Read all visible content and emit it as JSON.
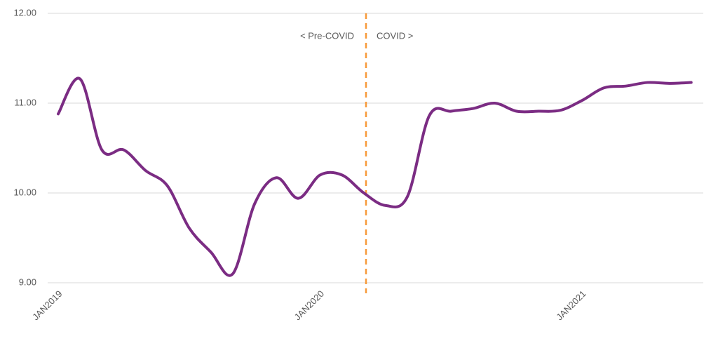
{
  "chart_data": {
    "type": "line",
    "categories": [
      "JAN2019",
      null,
      null,
      null,
      null,
      null,
      null,
      null,
      null,
      null,
      null,
      null,
      "JAN2020",
      null,
      null,
      null,
      null,
      null,
      null,
      null,
      null,
      null,
      null,
      null,
      "JAN2021",
      null,
      null,
      null,
      null,
      null
    ],
    "values": [
      10.88,
      11.27,
      10.48,
      10.48,
      10.25,
      10.08,
      9.61,
      9.34,
      9.1,
      9.88,
      10.17,
      9.94,
      10.2,
      10.2,
      10.0,
      9.86,
      9.96,
      10.86,
      10.91,
      10.94,
      11.0,
      10.91,
      10.91,
      10.92,
      11.03,
      11.17,
      11.19,
      11.23,
      11.22,
      11.23
    ],
    "color": "#7b2c83",
    "ylim": [
      9,
      12
    ],
    "yticks": [
      {
        "value": 9,
        "label": "9.00"
      },
      {
        "value": 10,
        "label": "10.00"
      },
      {
        "value": 11,
        "label": "11.00"
      },
      {
        "value": 12,
        "label": "12.00"
      }
    ],
    "grid": true,
    "annotations": [
      "< Pre-COVID",
      "COVID >"
    ]
  }
}
